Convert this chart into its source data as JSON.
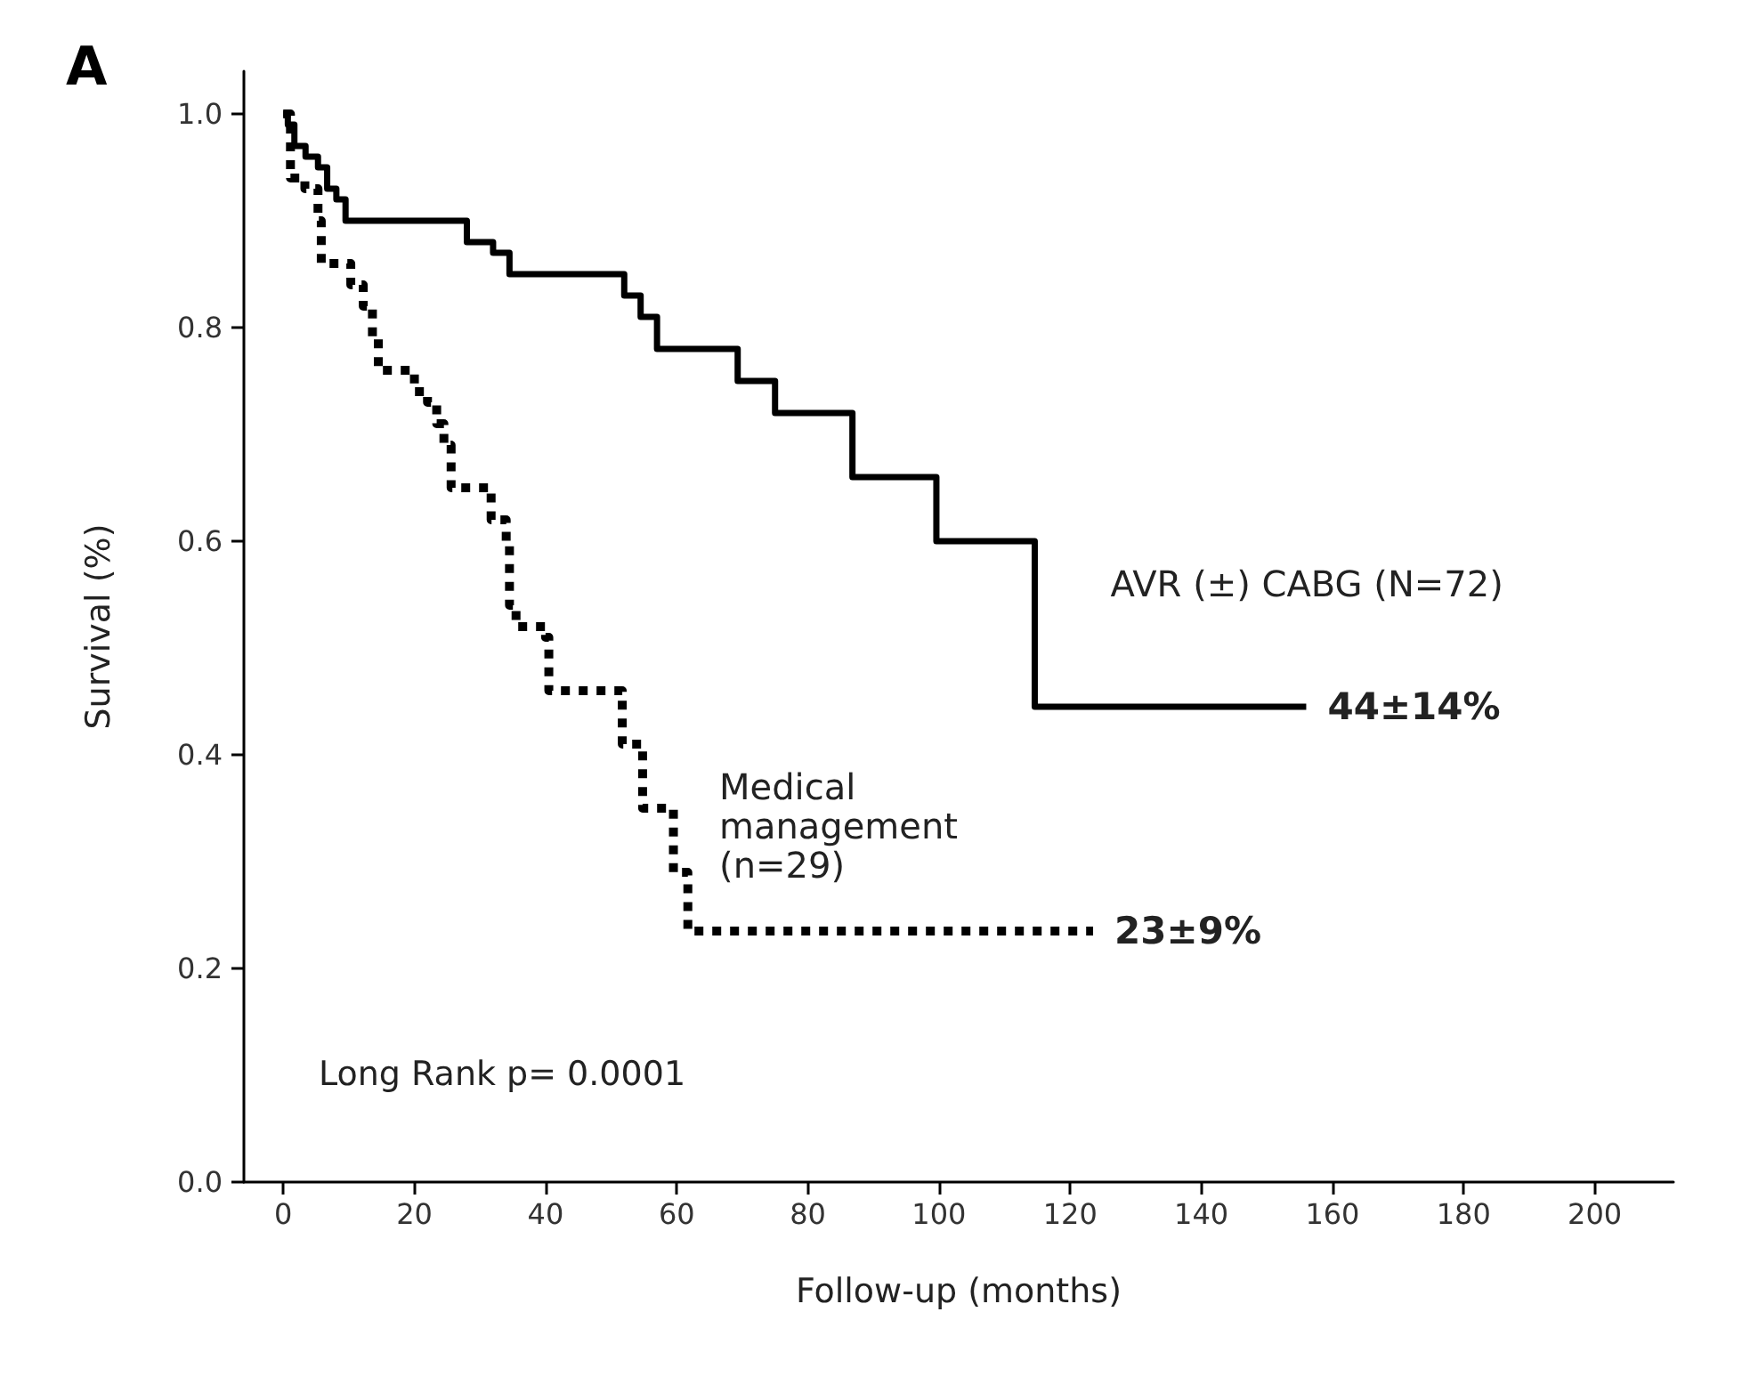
{
  "chart_data": {
    "type": "step",
    "title": "A",
    "xlabel": "Follow-up (months)",
    "ylabel": "Survival (%)",
    "xlim": [
      -6,
      212
    ],
    "xticks": [
      0,
      20,
      40,
      60,
      80,
      100,
      120,
      140,
      160,
      180,
      200
    ],
    "ylim": [
      0,
      1.04
    ],
    "yticks": [
      {
        "value": 0,
        "label": "0.0"
      },
      {
        "value": 0.2,
        "label": "0.2"
      },
      {
        "value": 0.4,
        "label": "0.4"
      },
      {
        "value": 0.6,
        "label": "0.6"
      },
      {
        "value": 0.8,
        "label": "0.8"
      },
      {
        "value": 1,
        "label": "1.0"
      }
    ],
    "grid": false,
    "legend": false,
    "marker": "none",
    "series": [
      {
        "name": "AVR (±) CABG (N=72)",
        "color": "#000000",
        "line_style": "solid",
        "x": [
          0,
          0.7,
          1.7,
          3.4,
          5.3,
          6.7,
          8.1,
          9.5,
          28,
          32,
          34.5,
          52,
          54.5,
          57,
          69.3,
          75,
          86.8,
          99.6,
          114.6,
          156
        ],
        "values": [
          1.0,
          0.99,
          0.97,
          0.96,
          0.95,
          0.93,
          0.92,
          0.9,
          0.88,
          0.87,
          0.85,
          0.83,
          0.81,
          0.78,
          0.75,
          0.72,
          0.66,
          0.6,
          0.445,
          0.445
        ]
      },
      {
        "name": "Medical management (n=29)",
        "color": "#000000",
        "line_style": "dotted",
        "x": [
          0,
          1.1,
          3.3,
          5.3,
          5.8,
          10.3,
          12.2,
          13.6,
          14.5,
          20,
          22,
          23.4,
          24.5,
          25.6,
          31.7,
          34,
          34.5,
          35.5,
          40,
          40.5,
          51.7,
          54.8,
          59.5,
          61.7,
          123.5
        ],
        "values": [
          1.0,
          0.94,
          0.93,
          0.9,
          0.86,
          0.84,
          0.82,
          0.79,
          0.76,
          0.74,
          0.73,
          0.71,
          0.69,
          0.65,
          0.62,
          0.6,
          0.54,
          0.52,
          0.51,
          0.46,
          0.41,
          0.35,
          0.29,
          0.235,
          0.235
        ]
      }
    ],
    "annotations": [
      {
        "text": "44±14%",
        "x": 156,
        "y": 0.445
      },
      {
        "text": "23±9%",
        "x": 123.5,
        "y": 0.235
      },
      "Long Rank p= 0.0001"
    ]
  }
}
